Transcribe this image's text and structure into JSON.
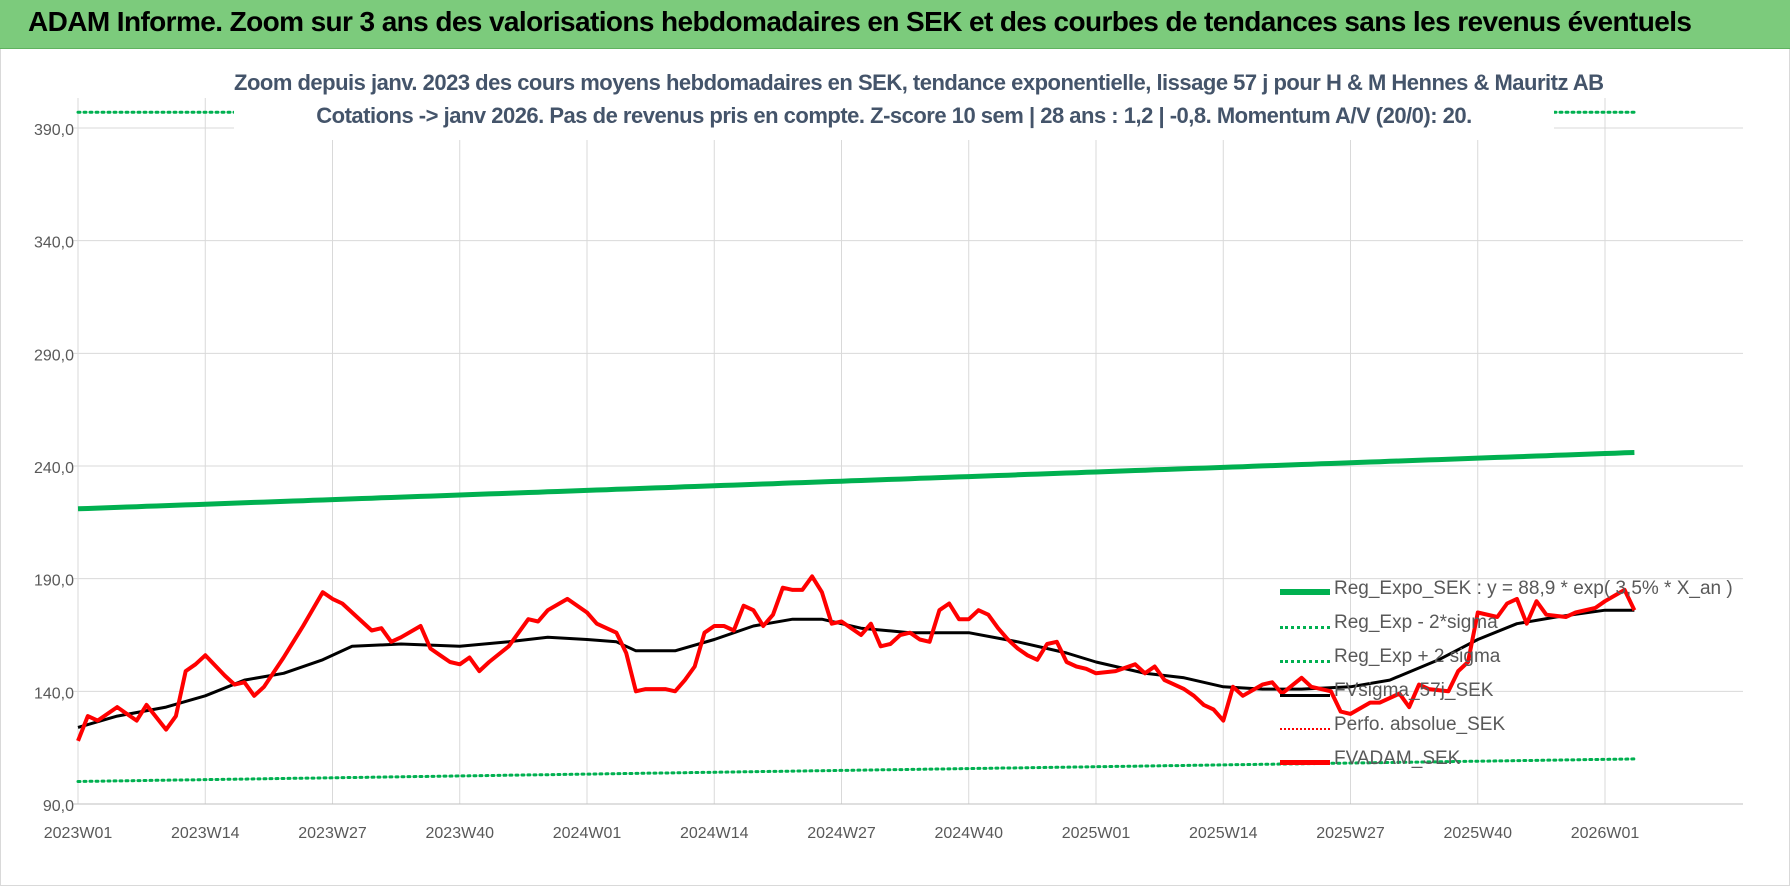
{
  "banner": {
    "title": "ADAM Informe. Zoom sur 3 ans des valorisations hebdomadaires en SEK et des courbes de tendances sans les revenus éventuels"
  },
  "colors": {
    "banner_bg": "#7ccb7c",
    "reg_expo": "#00b050",
    "reg_band": "#00b050",
    "perfo": "#ff0000",
    "fvadam": "#ff0000",
    "fvsigma": "#000000",
    "subtitle": "#44546a",
    "axis_text": "#595959",
    "grid": "#d9d9d9"
  },
  "chart_data": {
    "type": "line",
    "title": [
      "Zoom depuis janv. 2023 des cours moyens hebdomadaires en SEK, tendance exponentielle, lissage 57 j pour H & M Hennes & Mauritz AB",
      "Cotations -> janv 2026. Pas de revenus pris en compte. Z-score 10 sem | 28 ans : 1,2 | -0,8. Momentum A/V (20/0): 20."
    ],
    "ylim": [
      90,
      390
    ],
    "yticks": [
      90,
      140,
      190,
      240,
      290,
      340,
      390
    ],
    "ytick_labels": [
      "90,0",
      "140,0",
      "190,0",
      "240,0",
      "290,0",
      "340,0",
      "390,0"
    ],
    "x_categories": [
      "2023W01",
      "2023W14",
      "2023W27",
      "2023W40",
      "2024W01",
      "2024W14",
      "2024W27",
      "2024W40",
      "2025W01",
      "2025W14",
      "2025W27",
      "2025W40",
      "2026W01"
    ],
    "grid": true,
    "legend_position": "bottom-right",
    "series": [
      {
        "name": "Reg_Expo_SEK : y = 88,9 * exp( 3,5% * X_an )",
        "style": "solid-thick",
        "color": "#00b050",
        "x": [
          "2023W01",
          "2026W04"
        ],
        "y": [
          221,
          246
        ]
      },
      {
        "name": "Reg_Exp - 2*sigma",
        "style": "dotted",
        "color": "#00b050",
        "x": [
          "2023W01",
          "2026W04"
        ],
        "y": [
          100,
          110
        ]
      },
      {
        "name": "Reg_Exp + 2 sigma",
        "style": "dotted",
        "color": "#00b050",
        "x": [
          "2023W01",
          "2026W04"
        ],
        "y": [
          397,
          397
        ]
      },
      {
        "name": "FVsigma_57j_SEK",
        "style": "solid",
        "color": "#000000",
        "x": [
          "2023W01",
          "2023W05",
          "2023W10",
          "2023W14",
          "2023W18",
          "2023W22",
          "2023W26",
          "2023W29",
          "2023W34",
          "2023W40",
          "2023W45",
          "2023W49",
          "2024W01",
          "2024W04",
          "2024W06",
          "2024W10",
          "2024W14",
          "2024W18",
          "2024W22",
          "2024W25",
          "2024W29",
          "2024W34",
          "2024W40",
          "2024W45",
          "2024W50",
          "2025W01",
          "2025W06",
          "2025W10",
          "2025W14",
          "2025W18",
          "2025W22",
          "2025W27",
          "2025W31",
          "2025W36",
          "2025W40",
          "2025W44",
          "2025W48",
          "2026W01",
          "2026W04"
        ],
        "y": [
          124,
          129,
          133,
          138,
          145,
          148,
          154,
          160,
          161,
          160,
          162,
          164,
          163,
          162,
          158,
          158,
          163,
          169,
          172,
          172,
          168,
          166,
          166,
          162,
          157,
          153,
          148,
          146,
          142,
          141,
          141,
          142,
          145,
          154,
          163,
          170,
          173,
          176,
          176
        ]
      },
      {
        "name": "Perfo. absolue_SEK",
        "style": "dotted",
        "color": "#ff0000",
        "x": [],
        "y": []
      },
      {
        "name": "FVADAM_SEK",
        "style": "solid-thick",
        "color": "#ff0000",
        "x": [
          "2023W01",
          "2023W02",
          "2023W03",
          "2023W05",
          "2023W06",
          "2023W07",
          "2023W08",
          "2023W10",
          "2023W11",
          "2023W12",
          "2023W13",
          "2023W14",
          "2023W16",
          "2023W17",
          "2023W18",
          "2023W19",
          "2023W20",
          "2023W22",
          "2023W24",
          "2023W26",
          "2023W27",
          "2023W28",
          "2023W29",
          "2023W31",
          "2023W32",
          "2023W33",
          "2023W34",
          "2023W36",
          "2023W37",
          "2023W38",
          "2023W39",
          "2023W40",
          "2023W41",
          "2023W42",
          "2023W43",
          "2023W45",
          "2023W47",
          "2023W48",
          "2023W49",
          "2023W51",
          "2024W01",
          "2024W02",
          "2024W04",
          "2024W05",
          "2024W06",
          "2024W07",
          "2024W09",
          "2024W10",
          "2024W11",
          "2024W12",
          "2024W13",
          "2024W14",
          "2024W15",
          "2024W16",
          "2024W17",
          "2024W18",
          "2024W19",
          "2024W20",
          "2024W21",
          "2024W22",
          "2024W23",
          "2024W24",
          "2024W25",
          "2024W26",
          "2024W27",
          "2024W29",
          "2024W30",
          "2024W31",
          "2024W32",
          "2024W33",
          "2024W34",
          "2024W35",
          "2024W36",
          "2024W37",
          "2024W38",
          "2024W39",
          "2024W40",
          "2024W41",
          "2024W42",
          "2024W43",
          "2024W44",
          "2024W45",
          "2024W46",
          "2024W47",
          "2024W48",
          "2024W49",
          "2024W50",
          "2024W51",
          "2024W52",
          "2025W01",
          "2025W03",
          "2025W05",
          "2025W06",
          "2025W07",
          "2025W08",
          "2025W09",
          "2025W10",
          "2025W11",
          "2025W12",
          "2025W13",
          "2025W14",
          "2025W15",
          "2025W16",
          "2025W18",
          "2025W19",
          "2025W20",
          "2025W22",
          "2025W23",
          "2025W25",
          "2025W26",
          "2025W27",
          "2025W29",
          "2025W30",
          "2025W32",
          "2025W33",
          "2025W34",
          "2025W35",
          "2025W37",
          "2025W38",
          "2025W39",
          "2025W40",
          "2025W42",
          "2025W43",
          "2025W44",
          "2025W45",
          "2025W46",
          "2025W47",
          "2025W49",
          "2025W50",
          "2025W52",
          "2026W01",
          "2026W03",
          "2026W04"
        ],
        "y": [
          118,
          129,
          127,
          133,
          130,
          127,
          134,
          123,
          129,
          149,
          152,
          156,
          147,
          143,
          144,
          138,
          142,
          155,
          169,
          184,
          181,
          179,
          175,
          167,
          168,
          162,
          164,
          169,
          159,
          156,
          153,
          152,
          155,
          149,
          153,
          160,
          172,
          171,
          176,
          181,
          175,
          170,
          166,
          157,
          140,
          141,
          141,
          140,
          145,
          151,
          166,
          169,
          169,
          167,
          178,
          176,
          169,
          174,
          186,
          185,
          185,
          191,
          184,
          170,
          171,
          165,
          170,
          160,
          161,
          165,
          166,
          163,
          162,
          176,
          179,
          172,
          172,
          176,
          174,
          168,
          163,
          159,
          156,
          154,
          161,
          162,
          153,
          151,
          150,
          148,
          149,
          152,
          148,
          151,
          145,
          143,
          141,
          138,
          134,
          132,
          127,
          142,
          138,
          143,
          144,
          139,
          146,
          142,
          140,
          131,
          130,
          135,
          135,
          139,
          133,
          143,
          141,
          140,
          149,
          153,
          175,
          173,
          179,
          181,
          170,
          180,
          174,
          173,
          175,
          177,
          180,
          185,
          176
        ]
      }
    ]
  }
}
